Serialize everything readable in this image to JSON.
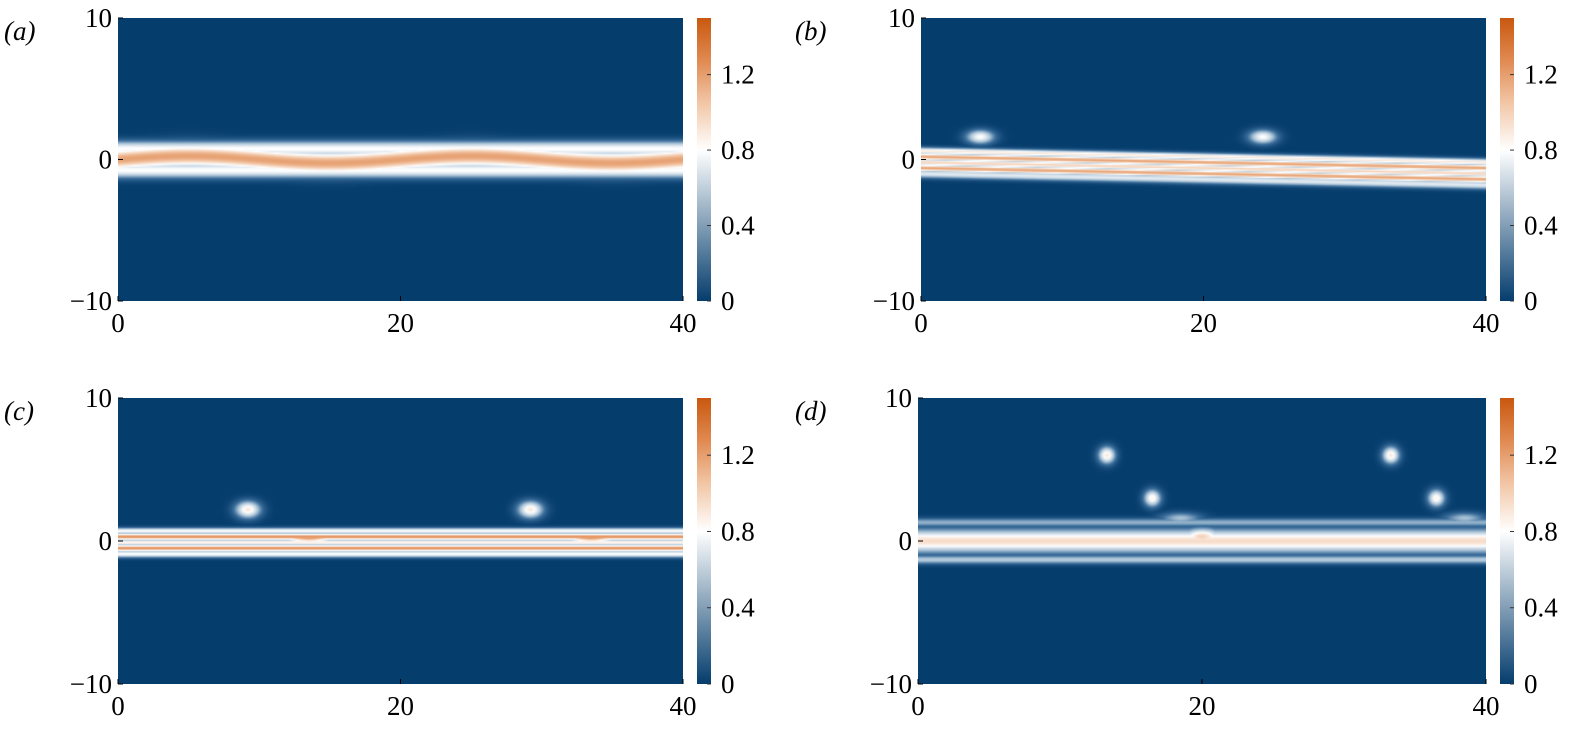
{
  "chart_data": [
    {
      "type": "heatmap",
      "panel_label": "(a)",
      "x_ticks": [
        "0",
        "20",
        "40"
      ],
      "y_ticks": [
        "10",
        "0",
        "−10"
      ],
      "xlim": [
        0,
        40
      ],
      "ylim": [
        -10,
        10
      ],
      "colorbar": {
        "ticks": [
          "0",
          "0.4",
          "0.8",
          "1.2"
        ],
        "range": [
          0,
          1.5
        ]
      },
      "features": [
        {
          "kind": "band",
          "y": 0,
          "width": 0.85,
          "value": 1.2,
          "amp": 0.25,
          "period": 20
        },
        {
          "kind": "band",
          "y": 0.75,
          "width": 0.55,
          "value": 0.8
        },
        {
          "kind": "band",
          "y": -0.75,
          "width": 0.55,
          "value": 0.8
        },
        {
          "kind": "blob",
          "x": 8.7,
          "y": 0.4,
          "rx": 1.6,
          "ry": 0.55,
          "value": 0.9
        },
        {
          "kind": "blob",
          "x": 28.7,
          "y": 0.4,
          "rx": 1.6,
          "ry": 0.55,
          "value": 0.9
        },
        {
          "kind": "blob",
          "x": 16.5,
          "y": 0.0,
          "rx": 1.4,
          "ry": 0.45,
          "value": 0.8
        },
        {
          "kind": "blob",
          "x": 36.5,
          "y": 0.0,
          "rx": 1.4,
          "ry": 0.45,
          "value": 0.8
        }
      ]
    },
    {
      "type": "heatmap",
      "panel_label": "(b)",
      "x_ticks": [
        "0",
        "20",
        "40"
      ],
      "y_ticks": [
        "10",
        "0",
        "−10"
      ],
      "xlim": [
        0,
        40
      ],
      "ylim": [
        -10,
        10
      ],
      "colorbar": {
        "ticks": [
          "0",
          "0.4",
          "0.8",
          "1.2"
        ],
        "range": [
          0,
          1.5
        ]
      },
      "features": [
        {
          "kind": "band",
          "y": 0.6,
          "width": 0.25,
          "value": 0.9,
          "slope": -0.02
        },
        {
          "kind": "band",
          "y": 0.2,
          "width": 0.25,
          "value": 1.2,
          "slope": -0.02
        },
        {
          "kind": "band",
          "y": -0.2,
          "width": 0.25,
          "value": 1.0,
          "slope": -0.02
        },
        {
          "kind": "band",
          "y": -0.6,
          "width": 0.25,
          "value": 1.2,
          "slope": -0.02
        },
        {
          "kind": "band",
          "y": -1.0,
          "width": 0.3,
          "value": 0.7,
          "slope": -0.02
        },
        {
          "kind": "blob",
          "x": 4.2,
          "y": 1.6,
          "rx": 1.0,
          "ry": 0.5,
          "value": 0.8
        },
        {
          "kind": "blob",
          "x": 24.2,
          "y": 1.6,
          "rx": 1.0,
          "ry": 0.5,
          "value": 0.8
        }
      ]
    },
    {
      "type": "heatmap",
      "panel_label": "(c)",
      "x_ticks": [
        "0",
        "20",
        "40"
      ],
      "y_ticks": [
        "10",
        "0",
        "−10"
      ],
      "xlim": [
        0,
        40
      ],
      "ylim": [
        -10,
        10
      ],
      "colorbar": {
        "ticks": [
          "0",
          "0.4",
          "0.8",
          "1.2"
        ],
        "range": [
          0,
          1.5
        ]
      },
      "features": [
        {
          "kind": "band",
          "y": 0.7,
          "width": 0.22,
          "value": 0.8
        },
        {
          "kind": "band",
          "y": 0.3,
          "width": 0.22,
          "value": 1.3
        },
        {
          "kind": "band",
          "y": -0.1,
          "width": 0.22,
          "value": 0.9
        },
        {
          "kind": "band",
          "y": -0.5,
          "width": 0.22,
          "value": 1.3
        },
        {
          "kind": "band",
          "y": -0.9,
          "width": 0.25,
          "value": 0.8
        },
        {
          "kind": "blob",
          "x": 9.2,
          "y": 2.2,
          "rx": 0.9,
          "ry": 0.6,
          "value": 0.9
        },
        {
          "kind": "blob",
          "x": 29.2,
          "y": 2.2,
          "rx": 0.9,
          "ry": 0.6,
          "value": 0.9
        },
        {
          "kind": "blob",
          "x": 13.5,
          "y": 0.2,
          "rx": 2.0,
          "ry": 0.3,
          "value": 1.2
        },
        {
          "kind": "blob",
          "x": 33.5,
          "y": 0.2,
          "rx": 2.0,
          "ry": 0.3,
          "value": 1.2
        }
      ]
    },
    {
      "type": "heatmap",
      "panel_label": "(d)",
      "x_ticks": [
        "0",
        "20",
        "40"
      ],
      "y_ticks": [
        "10",
        "0",
        "−10"
      ],
      "xlim": [
        0,
        40
      ],
      "ylim": [
        -10,
        10
      ],
      "colorbar": {
        "ticks": [
          "0",
          "0.4",
          "0.8",
          "1.2"
        ],
        "range": [
          0,
          1.5
        ]
      },
      "features": [
        {
          "kind": "band",
          "y": 0,
          "width": 0.8,
          "value": 0.95
        },
        {
          "kind": "band",
          "y": -1.3,
          "width": 0.3,
          "value": 0.55
        },
        {
          "kind": "band",
          "y": 1.3,
          "width": 0.3,
          "value": 0.45
        },
        {
          "kind": "blob",
          "x": 20,
          "y": 0.3,
          "rx": 1.5,
          "ry": 0.6,
          "value": 1.0
        },
        {
          "kind": "blob",
          "x": 13.3,
          "y": 6.0,
          "rx": 0.6,
          "ry": 0.6,
          "value": 0.9
        },
        {
          "kind": "blob",
          "x": 33.3,
          "y": 6.0,
          "rx": 0.6,
          "ry": 0.6,
          "value": 0.9
        },
        {
          "kind": "blob",
          "x": 16.5,
          "y": 3.0,
          "rx": 0.6,
          "ry": 0.6,
          "value": 0.85
        },
        {
          "kind": "blob",
          "x": 36.5,
          "y": 3.0,
          "rx": 0.6,
          "ry": 0.6,
          "value": 0.85
        },
        {
          "kind": "blob",
          "x": 18.5,
          "y": 1.6,
          "rx": 1.5,
          "ry": 0.4,
          "value": 0.5
        },
        {
          "kind": "blob",
          "x": 38.5,
          "y": 1.6,
          "rx": 1.5,
          "ry": 0.4,
          "value": 0.5
        }
      ]
    }
  ]
}
